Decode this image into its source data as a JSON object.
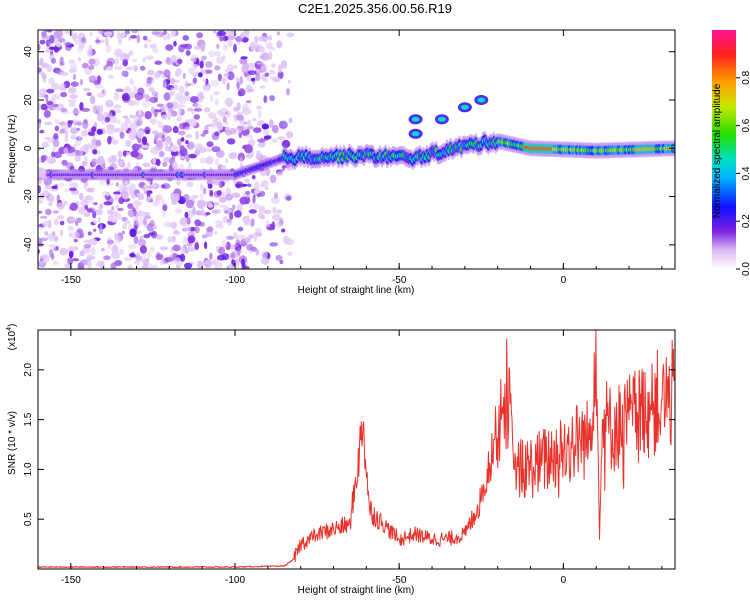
{
  "title": "C2E1.2025.356.00.56.R19",
  "chart_data": [
    {
      "type": "heatmap",
      "xlabel": "Height of straight line (km)",
      "ylabel": "Frequency (Hz)",
      "xlim": [
        -160,
        34
      ],
      "ylim": [
        -50,
        49
      ],
      "xticks": [
        -150,
        -100,
        -50,
        0
      ],
      "xtick_labels": [
        "-150",
        "-100",
        "-50",
        "0"
      ],
      "yticks": [
        -40,
        -20,
        0,
        20,
        40
      ],
      "ytick_labels": [
        "-40",
        "-20",
        "0",
        "20",
        "40"
      ],
      "colorbar": {
        "label": "Normalized spectral amplitude",
        "range": [
          0,
          1
        ],
        "ticks": [
          0.0,
          0.2,
          0.4,
          0.6,
          0.8
        ],
        "tick_labels": [
          "0.0",
          "0.2",
          "0.4",
          "0.6",
          "0.8"
        ]
      },
      "band": {
        "description_points": [
          {
            "x": -140,
            "y": -11
          },
          {
            "x": -100,
            "y": -11
          },
          {
            "x": -85,
            "y": -4
          },
          {
            "x": -60,
            "y": -3
          },
          {
            "x": -45,
            "y": -4
          },
          {
            "x": -30,
            "y": 1
          },
          {
            "x": -20,
            "y": 3
          },
          {
            "x": -10,
            "y": 0
          },
          {
            "x": 10,
            "y": -1
          },
          {
            "x": 34,
            "y": 0
          }
        ]
      },
      "secondary_features": [
        {
          "x": -45,
          "y": 6
        },
        {
          "x": -45,
          "y": 12
        },
        {
          "x": -37,
          "y": 12
        },
        {
          "x": -30,
          "y": 17
        },
        {
          "x": -25,
          "y": 20
        }
      ]
    },
    {
      "type": "line",
      "xlabel": "Height of straight line (km)",
      "ylabel": "SNR (10 * v/v)",
      "scale_label": "(x10",
      "scale_exp": "4",
      "xlim": [
        -160,
        34
      ],
      "ylim": [
        0,
        2.4
      ],
      "xticks": [
        -150,
        -100,
        -50,
        0
      ],
      "xtick_labels": [
        "-150",
        "-100",
        "-50",
        "0"
      ],
      "yticks": [
        0.5,
        1.0,
        1.5,
        2.0
      ],
      "ytick_labels": [
        "0.5",
        "1.0",
        "1.5",
        "2.0"
      ],
      "series": [
        {
          "name": "SNR",
          "color": "#e8312a",
          "x": [
            -160,
            -140,
            -120,
            -100,
            -85,
            -82,
            -80,
            -75,
            -70,
            -65,
            -61,
            -59,
            -55,
            -50,
            -45,
            -40,
            -35,
            -30,
            -27,
            -25,
            -21,
            -17,
            -15,
            -12,
            -8,
            -5,
            0,
            5,
            8,
            10,
            11,
            12,
            15,
            20,
            25,
            30,
            34
          ],
          "values": [
            0.02,
            0.02,
            0.02,
            0.02,
            0.03,
            0.1,
            0.25,
            0.35,
            0.4,
            0.45,
            1.45,
            0.6,
            0.45,
            0.3,
            0.35,
            0.3,
            0.3,
            0.35,
            0.55,
            0.7,
            1.3,
            1.8,
            1.0,
            1.0,
            1.05,
            1.1,
            1.2,
            1.3,
            1.3,
            2.4,
            0.3,
            1.5,
            1.4,
            1.5,
            1.6,
            1.7,
            1.75
          ]
        }
      ]
    }
  ]
}
